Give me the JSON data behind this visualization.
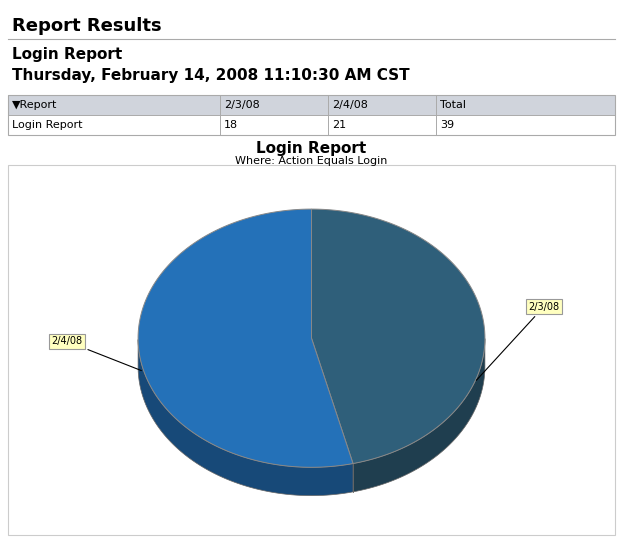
{
  "report_title": "Report Results",
  "section_title": "Login Report",
  "date_str": "Thursday, February 14, 2008 11:10:30 AM CST",
  "table_headers": [
    "▼Report",
    "2/3/08",
    "2/4/08",
    "Total"
  ],
  "table_row": [
    "Login Report",
    "18",
    "21",
    "39"
  ],
  "chart_title": "Login Report",
  "chart_subtitle": "Where: Action Equals Login",
  "pie_labels": [
    "2/3/08",
    "2/4/08"
  ],
  "pie_values": [
    18,
    21
  ],
  "pie_colors": [
    "#2F5F7A",
    "#2471B8"
  ],
  "pie_edge_color": "#888888",
  "label_box_color": "#FFFFC0",
  "label_box_edge": "#999999",
  "background_color": "#ffffff",
  "border_color": "#cccccc",
  "table_header_bg": "#d0d4dc",
  "table_row_bg": "#ffffff",
  "table_border": "#aaaaaa",
  "fig_width": 6.23,
  "fig_height": 5.39,
  "dpi": 100
}
